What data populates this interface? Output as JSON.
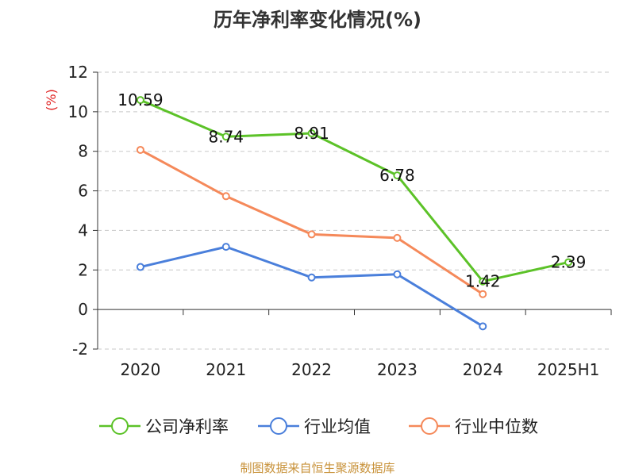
{
  "chart_data": {
    "type": "line",
    "title": "历年净利率变化情况(%)",
    "ylabel": "(%)",
    "categories": [
      "2020",
      "2021",
      "2022",
      "2023",
      "2024",
      "2025H1"
    ],
    "ylim": [
      -2,
      12
    ],
    "yticks": [
      -2,
      0,
      2,
      4,
      6,
      8,
      10,
      12
    ],
    "grid": "horizontal-dashed",
    "legend_position": "bottom",
    "series": [
      {
        "name": "公司净利率",
        "color": "#5cc228",
        "values": [
          10.59,
          8.74,
          8.91,
          6.78,
          1.42,
          2.39
        ],
        "labels": [
          "10.59",
          "8.74",
          "8.91",
          "6.78",
          "1.42",
          "2.39"
        ]
      },
      {
        "name": "行业均值",
        "color": "#4a7fdb",
        "values": [
          2.15,
          3.17,
          1.62,
          1.78,
          -0.85,
          null
        ]
      },
      {
        "name": "行业中位数",
        "color": "#f5895a",
        "values": [
          8.07,
          5.73,
          3.8,
          3.62,
          0.78,
          null
        ]
      }
    ]
  },
  "source_note": "制图数据来自恒生聚源数据库"
}
